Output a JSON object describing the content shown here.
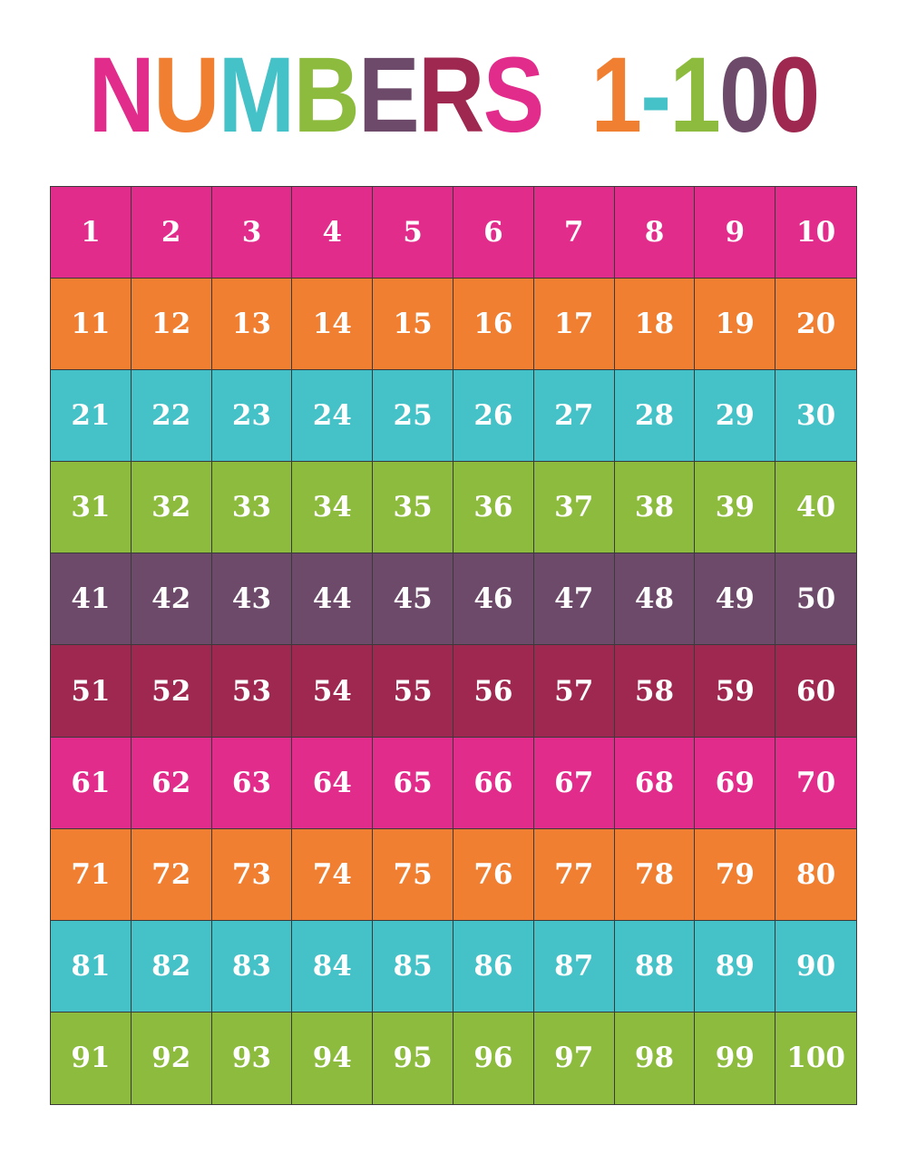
{
  "title": {
    "text": "NUMBERS 1-100",
    "letters": [
      {
        "ch": "N",
        "color": "#e22c8c"
      },
      {
        "ch": "U",
        "color": "#f07f31"
      },
      {
        "ch": "M",
        "color": "#45c1c8"
      },
      {
        "ch": "B",
        "color": "#8dbb3d"
      },
      {
        "ch": "E",
        "color": "#6d4a6a"
      },
      {
        "ch": "R",
        "color": "#9e2850"
      },
      {
        "ch": "S",
        "color": "#e22c8c"
      },
      {
        "ch": " ",
        "color": "#ffffff"
      },
      {
        "ch": "1",
        "color": "#f07f31"
      },
      {
        "ch": "-",
        "color": "#45c1c8"
      },
      {
        "ch": "1",
        "color": "#8dbb3d"
      },
      {
        "ch": "0",
        "color": "#6d4a6a"
      },
      {
        "ch": "0",
        "color": "#9e2850"
      }
    ]
  },
  "grid": {
    "rows": [
      {
        "color": "#e22c8c",
        "numbers": [
          "1",
          "2",
          "3",
          "4",
          "5",
          "6",
          "7",
          "8",
          "9",
          "10"
        ]
      },
      {
        "color": "#f07f31",
        "numbers": [
          "11",
          "12",
          "13",
          "14",
          "15",
          "16",
          "17",
          "18",
          "19",
          "20"
        ]
      },
      {
        "color": "#45c1c8",
        "numbers": [
          "21",
          "22",
          "23",
          "24",
          "25",
          "26",
          "27",
          "28",
          "29",
          "30"
        ]
      },
      {
        "color": "#8dbb3d",
        "numbers": [
          "31",
          "32",
          "33",
          "34",
          "35",
          "36",
          "37",
          "38",
          "39",
          "40"
        ]
      },
      {
        "color": "#6d4a6a",
        "numbers": [
          "41",
          "42",
          "43",
          "44",
          "45",
          "46",
          "47",
          "48",
          "49",
          "50"
        ]
      },
      {
        "color": "#9e2850",
        "numbers": [
          "51",
          "52",
          "53",
          "54",
          "55",
          "56",
          "57",
          "58",
          "59",
          "60"
        ]
      },
      {
        "color": "#e22c8c",
        "numbers": [
          "61",
          "62",
          "63",
          "64",
          "65",
          "66",
          "67",
          "68",
          "69",
          "70"
        ]
      },
      {
        "color": "#f07f31",
        "numbers": [
          "71",
          "72",
          "73",
          "74",
          "75",
          "76",
          "77",
          "78",
          "79",
          "80"
        ]
      },
      {
        "color": "#45c1c8",
        "numbers": [
          "81",
          "82",
          "83",
          "84",
          "85",
          "86",
          "87",
          "88",
          "89",
          "90"
        ]
      },
      {
        "color": "#8dbb3d",
        "numbers": [
          "91",
          "92",
          "93",
          "94",
          "95",
          "96",
          "97",
          "98",
          "99",
          "100"
        ]
      }
    ]
  }
}
